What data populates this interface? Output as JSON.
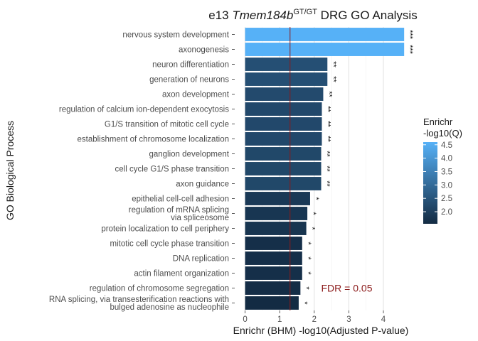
{
  "chart_data": {
    "type": "bar",
    "orientation": "horizontal",
    "title": {
      "prefix": "e13 ",
      "gene": "Tmem184b",
      "superscript": "GT/GT",
      "suffix": " DRG GO Analysis"
    },
    "xlabel": "Enrichr (BHM) -log10(Adjusted P-value)",
    "ylabel": "GO Biological Process",
    "xlim": [
      -0.3,
      4.72
    ],
    "xticks": [
      0,
      1,
      2,
      3,
      4
    ],
    "categories": [
      [
        "nervous system development"
      ],
      [
        "axonogenesis"
      ],
      [
        "neuron differentiation"
      ],
      [
        "generation of neurons"
      ],
      [
        "axon development"
      ],
      [
        "regulation of calcium ion-dependent exocytosis"
      ],
      [
        "G1/S transition of mitotic cell cycle"
      ],
      [
        "establishment of chromosome localization"
      ],
      [
        "ganglion development"
      ],
      [
        "cell cycle G1/S phase transition"
      ],
      [
        "axon guidance"
      ],
      [
        "epithelial cell-cell adhesion"
      ],
      [
        "regulation of mRNA splicing",
        "via spliceosome"
      ],
      [
        "protein localization to cell periphery"
      ],
      [
        "mitotic cell cycle phase transition"
      ],
      [
        "DNA replication"
      ],
      [
        "actin filament organization"
      ],
      [
        "regulation of chromosome segregation"
      ],
      [
        "RNA splicing, via transesterification reactions with",
        "bulged adenosine as nucleophile"
      ]
    ],
    "values": [
      4.6,
      4.6,
      2.38,
      2.38,
      2.26,
      2.22,
      2.22,
      2.22,
      2.2,
      2.2,
      2.2,
      1.88,
      1.8,
      1.77,
      1.65,
      1.65,
      1.65,
      1.6,
      1.55
    ],
    "color_values": [
      4.6,
      4.6,
      2.38,
      2.38,
      2.26,
      2.22,
      2.22,
      2.22,
      2.2,
      2.2,
      2.2,
      1.88,
      1.8,
      1.77,
      1.65,
      1.65,
      1.65,
      1.6,
      1.55
    ],
    "significance": [
      "***",
      "***",
      "**",
      "**",
      "**",
      "**",
      "**",
      "**",
      "**",
      "**",
      "**",
      "*",
      "*",
      "*",
      "*",
      "*",
      "*",
      "*",
      "*"
    ],
    "threshold": {
      "value": 1.3,
      "label": "FDR = 0.05",
      "color": "#8b1a1a"
    },
    "legend": {
      "title_lines": [
        "Enrichr",
        "-log10(Q)"
      ],
      "ticks": [
        2.0,
        2.5,
        3.0,
        3.5,
        4.0,
        4.5
      ],
      "tick_labels": [
        "2.0",
        "2.5",
        "3.0",
        "3.5",
        "4.0",
        "4.5"
      ],
      "range": [
        1.55,
        4.6
      ],
      "color_low": "#132b43",
      "color_high": "#56b1f7",
      "placement": "right"
    },
    "grid": true
  }
}
